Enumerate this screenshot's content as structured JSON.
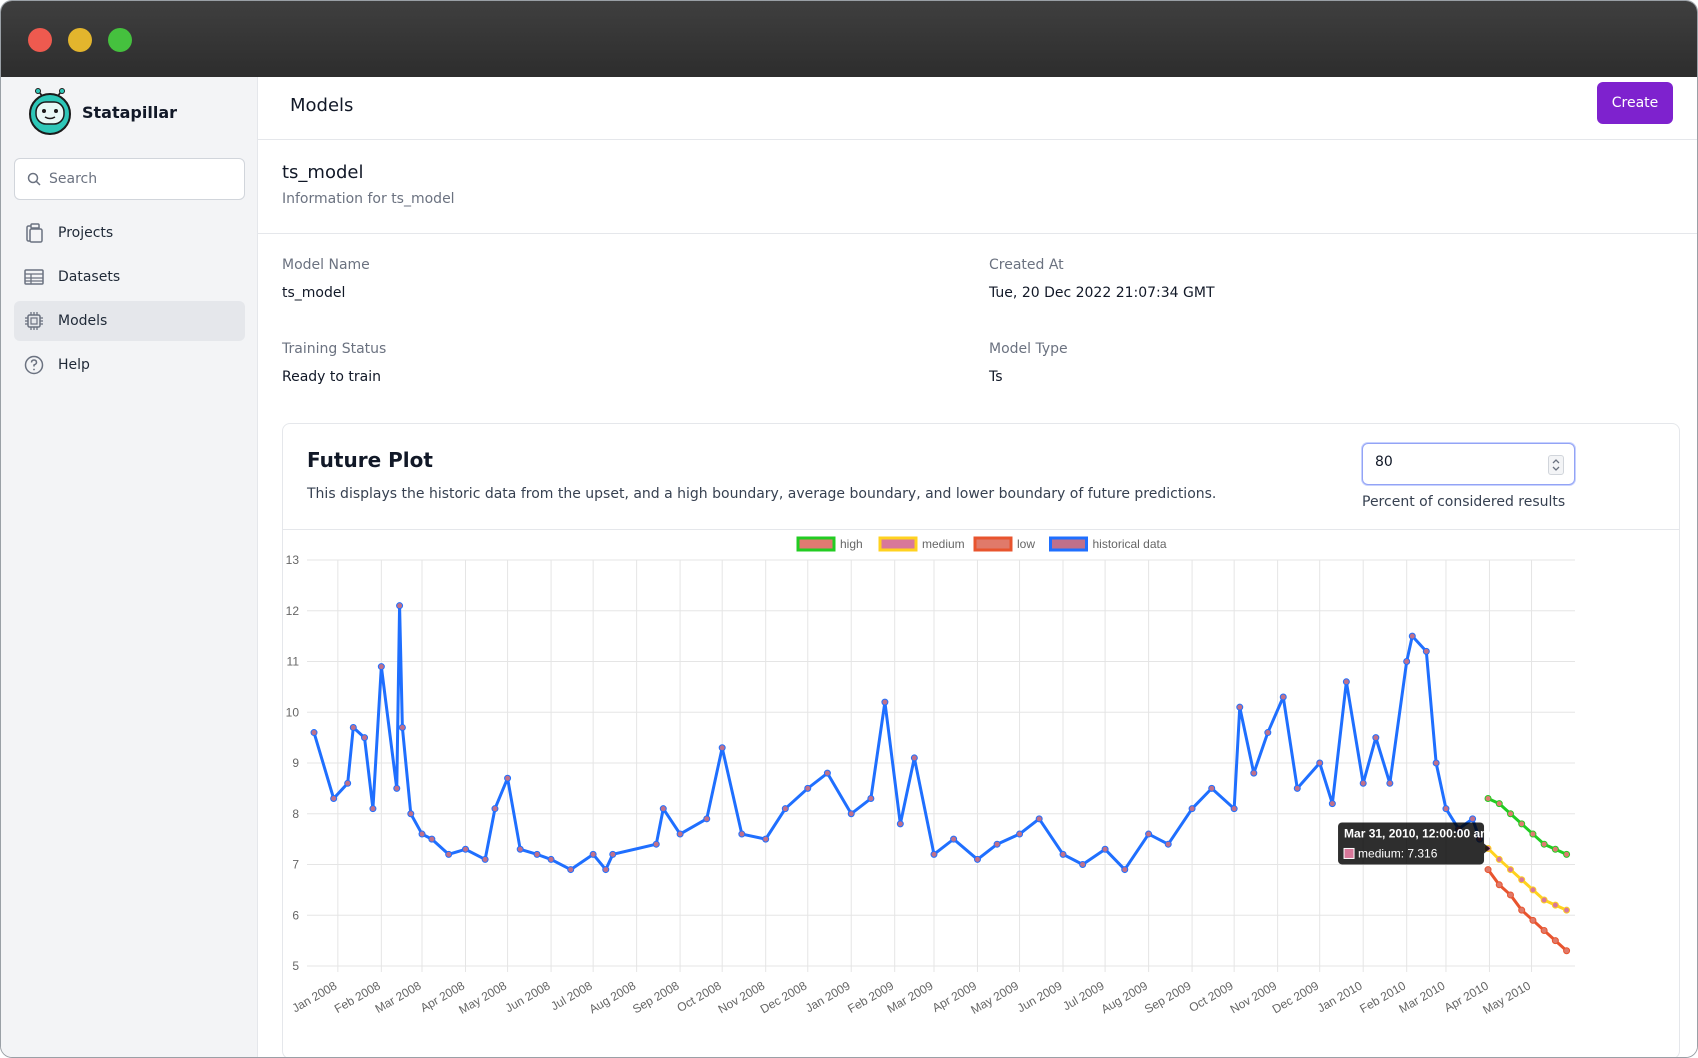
{
  "app": {
    "name": "Statapillar",
    "logo_icon": "caterpillar-logo-icon"
  },
  "window": {
    "controls": [
      "close",
      "minimize",
      "maximize"
    ],
    "colors": {
      "close": "#ee5a4f",
      "minimize": "#e3b52d",
      "maximize": "#45c13e"
    }
  },
  "sidebar": {
    "search_placeholder": "Search",
    "items": [
      {
        "label": "Projects",
        "icon": "clipboard-icon",
        "active": false
      },
      {
        "label": "Datasets",
        "icon": "table-icon",
        "active": false
      },
      {
        "label": "Models",
        "icon": "chip-icon",
        "active": true
      },
      {
        "label": "Help",
        "icon": "question-circle-icon",
        "active": false
      }
    ]
  },
  "header": {
    "title": "Models",
    "create_label": "Create",
    "accent": "#7e22ce"
  },
  "model": {
    "title": "ts_model",
    "subtitle": "Information for ts_model",
    "fields": {
      "name_label": "Model Name",
      "name_value": "ts_model",
      "created_label": "Created At",
      "created_value": "Tue, 20 Dec 2022 21:07:34 GMT",
      "status_label": "Training Status",
      "status_value": "Ready to train",
      "type_label": "Model Type",
      "type_value": "Ts"
    }
  },
  "plot": {
    "title": "Future Plot",
    "description": "This displays the historic data from the upset, and a high boundary, average boundary, and lower boundary of future predictions.",
    "percent_value": "80",
    "percent_label": "Percent of considered results"
  },
  "chart_data": {
    "type": "line",
    "legend_position": "top-center",
    "grid": true,
    "ylim": [
      5,
      13
    ],
    "yticks": [
      5,
      6,
      7,
      8,
      9,
      10,
      11,
      12,
      13
    ],
    "xticks": [
      "Jan 2008",
      "Feb 2008",
      "Mar 2008",
      "Apr 2008",
      "May 2008",
      "Jun 2008",
      "Jul 2008",
      "Aug 2008",
      "Sep 2008",
      "Oct 2008",
      "Nov 2008",
      "Dec 2008",
      "Jan 2009",
      "Feb 2009",
      "Mar 2009",
      "Apr 2009",
      "May 2009",
      "Jun 2009",
      "Jul 2009",
      "Aug 2009",
      "Sep 2009",
      "Oct 2009",
      "Nov 2009",
      "Dec 2009",
      "Jan 2010",
      "Feb 2010",
      "Mar 2010",
      "Apr 2010",
      "May 2010"
    ],
    "series": [
      {
        "name": "high",
        "color": "#22cc22",
        "fill": "#e07a72",
        "points": [
          [
            "Mar 31, 2010",
            8.3
          ],
          [
            "Apr 8, 2010",
            8.2
          ],
          [
            "Apr 16, 2010",
            8.0
          ],
          [
            "Apr 24, 2010",
            7.8
          ],
          [
            "May 2, 2010",
            7.6
          ],
          [
            "May 10, 2010",
            7.4
          ],
          [
            "May 18, 2010",
            7.3
          ],
          [
            "May 26, 2010",
            7.2
          ]
        ]
      },
      {
        "name": "medium",
        "color": "#ffd21f",
        "fill": "#d8789a",
        "points": [
          [
            "Mar 31, 2010",
            7.316
          ],
          [
            "Apr 8, 2010",
            7.1
          ],
          [
            "Apr 16, 2010",
            6.9
          ],
          [
            "Apr 24, 2010",
            6.7
          ],
          [
            "May 2, 2010",
            6.5
          ],
          [
            "May 10, 2010",
            6.3
          ],
          [
            "May 18, 2010",
            6.2
          ],
          [
            "May 26, 2010",
            6.1
          ]
        ]
      },
      {
        "name": "low",
        "color": "#e8542e",
        "fill": "#e07a6a",
        "points": [
          [
            "Mar 31, 2010",
            6.9
          ],
          [
            "Apr 8, 2010",
            6.6
          ],
          [
            "Apr 16, 2010",
            6.4
          ],
          [
            "Apr 24, 2010",
            6.1
          ],
          [
            "May 2, 2010",
            5.9
          ],
          [
            "May 10, 2010",
            5.7
          ],
          [
            "May 18, 2010",
            5.5
          ],
          [
            "May 26, 2010",
            5.3
          ]
        ]
      },
      {
        "name": "historical data",
        "color": "#1f6fff",
        "fill": "#c0708a",
        "points": [
          [
            "Dec 15, 2007",
            9.6
          ],
          [
            "Dec 29, 2007",
            8.3
          ],
          [
            "Jan 8, 2008",
            8.6
          ],
          [
            "Jan 12, 2008",
            9.7
          ],
          [
            "Jan 20, 2008",
            9.5
          ],
          [
            "Jan 26, 2008",
            8.1
          ],
          [
            "Feb 1, 2008",
            10.9
          ],
          [
            "Feb 12, 2008",
            8.5
          ],
          [
            "Feb 14, 2008",
            12.1
          ],
          [
            "Feb 16, 2008",
            9.7
          ],
          [
            "Feb 22, 2008",
            8.0
          ],
          [
            "Mar 1, 2008",
            7.6
          ],
          [
            "Mar 8, 2008",
            7.5
          ],
          [
            "Mar 20, 2008",
            7.2
          ],
          [
            "Apr 1, 2008",
            7.3
          ],
          [
            "Apr 15, 2008",
            7.1
          ],
          [
            "Apr 22, 2008",
            8.1
          ],
          [
            "May 1, 2008",
            8.7
          ],
          [
            "May 10, 2008",
            7.3
          ],
          [
            "May 22, 2008",
            7.2
          ],
          [
            "Jun 1, 2008",
            7.1
          ],
          [
            "Jun 15, 2008",
            6.9
          ],
          [
            "Jul 1, 2008",
            7.2
          ],
          [
            "Jul 10, 2008",
            6.9
          ],
          [
            "Jul 15, 2008",
            7.2
          ],
          [
            "Aug 15, 2008",
            7.4
          ],
          [
            "Aug 20, 2008",
            8.1
          ],
          [
            "Sep 1, 2008",
            7.6
          ],
          [
            "Sep 20, 2008",
            7.9
          ],
          [
            "Oct 1, 2008",
            9.3
          ],
          [
            "Oct 15, 2008",
            7.6
          ],
          [
            "Nov 1, 2008",
            7.5
          ],
          [
            "Nov 15, 2008",
            8.1
          ],
          [
            "Dec 1, 2008",
            8.5
          ],
          [
            "Dec 15, 2008",
            8.8
          ],
          [
            "Jan 1, 2009",
            8.0
          ],
          [
            "Jan 15, 2009",
            8.3
          ],
          [
            "Jan 25, 2009",
            10.2
          ],
          [
            "Feb 5, 2009",
            7.8
          ],
          [
            "Feb 15, 2009",
            9.1
          ],
          [
            "Mar 1, 2009",
            7.2
          ],
          [
            "Mar 15, 2009",
            7.5
          ],
          [
            "Apr 1, 2009",
            7.1
          ],
          [
            "Apr 15, 2009",
            7.4
          ],
          [
            "May 1, 2009",
            7.6
          ],
          [
            "May 15, 2009",
            7.9
          ],
          [
            "Jun 1, 2009",
            7.2
          ],
          [
            "Jun 15, 2009",
            7.0
          ],
          [
            "Jul 1, 2009",
            7.3
          ],
          [
            "Jul 15, 2009",
            6.9
          ],
          [
            "Aug 1, 2009",
            7.6
          ],
          [
            "Aug 15, 2009",
            7.4
          ],
          [
            "Sep 1, 2009",
            8.1
          ],
          [
            "Sep 15, 2009",
            8.5
          ],
          [
            "Oct 1, 2009",
            8.1
          ],
          [
            "Oct 5, 2009",
            10.1
          ],
          [
            "Oct 15, 2009",
            8.8
          ],
          [
            "Oct 25, 2009",
            9.6
          ],
          [
            "Nov 5, 2009",
            10.3
          ],
          [
            "Nov 15, 2009",
            8.5
          ],
          [
            "Dec 1, 2009",
            9.0
          ],
          [
            "Dec 10, 2009",
            8.2
          ],
          [
            "Dec 20, 2009",
            10.6
          ],
          [
            "Jan 1, 2010",
            8.6
          ],
          [
            "Jan 10, 2010",
            9.5
          ],
          [
            "Jan 20, 2010",
            8.6
          ],
          [
            "Feb 1, 2010",
            11.0
          ],
          [
            "Feb 5, 2010",
            11.5
          ],
          [
            "Feb 15, 2010",
            11.2
          ],
          [
            "Feb 22, 2010",
            9.0
          ],
          [
            "Mar 1, 2010",
            8.1
          ],
          [
            "Mar 10, 2010",
            7.7
          ],
          [
            "Mar 20, 2010",
            7.9
          ],
          [
            "Mar 25, 2010",
            7.5
          ]
        ]
      }
    ],
    "tooltip": {
      "title": "Mar 31, 2010, 12:00:00 am",
      "series": "medium",
      "value": "7.316",
      "label": "medium: 7.316"
    }
  }
}
